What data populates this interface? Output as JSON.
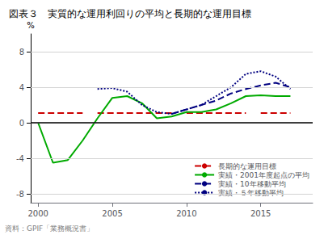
{
  "chart_data": {
    "type": "line",
    "title": "図表３　実質的な運用利回りの平均と長期的な運用目標",
    "source": "資料：GPIF「業務概況書」",
    "ylabel": "%",
    "xlim": [
      1999.5,
      2018.5
    ],
    "ylim": [
      -9,
      10
    ],
    "xticks": [
      2000,
      2005,
      2010,
      2015
    ],
    "yticks": [
      -8,
      -4,
      0,
      4,
      8
    ],
    "grid": true,
    "legend": "lower right",
    "reference_lines": [
      {
        "y": 0,
        "color": "#000000"
      }
    ],
    "series": [
      {
        "name": "長期的な運用目標",
        "color": "#cc0000",
        "line_style": "dashed",
        "segments": [
          {
            "x": [
              2000,
              2003
            ],
            "values": [
              1.1,
              1.1
            ]
          },
          {
            "x": [
              2004,
              2009
            ],
            "values": [
              1.1,
              1.1
            ]
          },
          {
            "x": [
              2010,
              2014
            ],
            "values": [
              1.1,
              1.1
            ]
          },
          {
            "x": [
              2015,
              2017
            ],
            "values": [
              1.1,
              1.1
            ]
          }
        ]
      },
      {
        "name": "実績・2001年度起点の平均",
        "color": "#00aa00",
        "line_style": "solid",
        "x": [
          2000,
          2001,
          2002,
          2003,
          2004,
          2005,
          2006,
          2007,
          2008,
          2009,
          2010,
          2011,
          2012,
          2013,
          2014,
          2015,
          2016,
          2017
        ],
        "values": [
          0.0,
          -4.5,
          -4.2,
          -2.0,
          0.5,
          2.8,
          3.0,
          2.2,
          0.5,
          0.7,
          1.2,
          1.2,
          1.5,
          2.2,
          3.0,
          3.1,
          3.0,
          3.0
        ]
      },
      {
        "name": "実績・10年移動平均",
        "color": "#000080",
        "line_style": "dashed",
        "x": [
          2009,
          2010,
          2011,
          2012,
          2013,
          2014,
          2015,
          2016,
          2017
        ],
        "values": [
          1.0,
          1.5,
          2.0,
          2.5,
          3.3,
          3.8,
          4.2,
          4.5,
          4.0
        ]
      },
      {
        "name": "実績・５年移動平均",
        "color": "#000080",
        "line_style": "dotted",
        "x": [
          2004,
          2005,
          2006,
          2007,
          2008,
          2009,
          2010,
          2011,
          2012,
          2013,
          2014,
          2015,
          2016,
          2017
        ],
        "values": [
          3.8,
          3.9,
          3.5,
          2.0,
          1.2,
          1.0,
          1.5,
          2.0,
          3.0,
          4.0,
          5.5,
          5.8,
          5.2,
          3.8
        ]
      }
    ]
  }
}
